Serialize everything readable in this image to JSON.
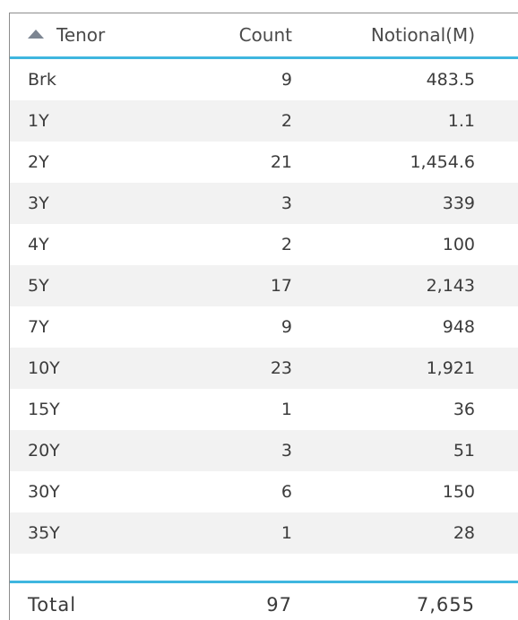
{
  "header": {
    "tenor": "Tenor",
    "count": "Count",
    "notional": "Notional(M)",
    "sort_icon": "triangle-up-icon"
  },
  "rows": [
    {
      "tenor": "Brk",
      "count": "9",
      "notional": "483.5"
    },
    {
      "tenor": "1Y",
      "count": "2",
      "notional": "1.1"
    },
    {
      "tenor": "2Y",
      "count": "21",
      "notional": "1,454.6"
    },
    {
      "tenor": "3Y",
      "count": "3",
      "notional": "339"
    },
    {
      "tenor": "4Y",
      "count": "2",
      "notional": "100"
    },
    {
      "tenor": "5Y",
      "count": "17",
      "notional": "2,143"
    },
    {
      "tenor": "7Y",
      "count": "9",
      "notional": "948"
    },
    {
      "tenor": "10Y",
      "count": "23",
      "notional": "1,921"
    },
    {
      "tenor": "15Y",
      "count": "1",
      "notional": "36"
    },
    {
      "tenor": "20Y",
      "count": "3",
      "notional": "51"
    },
    {
      "tenor": "30Y",
      "count": "6",
      "notional": "150"
    },
    {
      "tenor": "35Y",
      "count": "1",
      "notional": "28"
    }
  ],
  "total": {
    "label": "Total",
    "count": "97",
    "notional": "7,655"
  },
  "colors": {
    "accent": "#3fb6df",
    "alt_row": "#f2f2f2",
    "text": "#3c3c3c"
  }
}
